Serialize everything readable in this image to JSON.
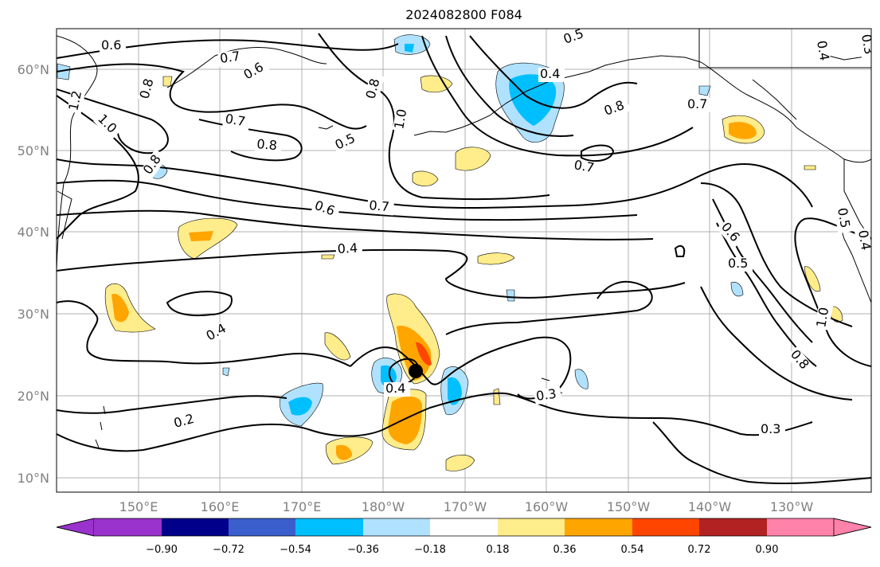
{
  "title": "2024082800 F084",
  "latitudes": [
    "10°N",
    "20°N",
    "30°N",
    "40°N",
    "50°N",
    "60°N"
  ],
  "longitudes": [
    "150°E",
    "160°E",
    "170°E",
    "180°W",
    "170°W",
    "160°W",
    "150°W",
    "140°W",
    "130°W"
  ],
  "contour_labels": [
    "0.6",
    "0.7",
    "0.6",
    "0.8",
    "1.2",
    "1.0",
    "0.8",
    "0.7",
    "0.5",
    "1.0",
    "0.8",
    "0.5",
    "0.4",
    "0.8",
    "0.7",
    "0.8",
    "0.7",
    "0.6",
    "0.7",
    "0.4",
    "0.6",
    "0.5",
    "0.5",
    "0.4",
    "0.4",
    "0.4",
    "0.2",
    "0.3",
    "0.3",
    "1.0",
    "0.8",
    "0.4",
    "0.3"
  ],
  "colorbar": {
    "ticks": [
      "−0.90",
      "−0.72",
      "−0.54",
      "−0.36",
      "−0.18",
      "0.18",
      "0.36",
      "0.54",
      "0.72",
      "0.90"
    ],
    "colors": {
      "lt_-0.90": "#9a32cd",
      "-0.90_-0.72": "#00008b",
      "-0.72_-0.54": "#3a5fcd",
      "-0.54_-0.36": "#00bfff",
      "-0.36_-0.18": "#b0e2ff",
      "-0.18_0.18": "#ffffff",
      "0.18_0.36": "#ffec8b",
      "0.36_0.54": "#ffa500",
      "0.54_0.72": "#ff4500",
      "0.72_0.90": "#b22222",
      "gt_0.90": "#ff82ab"
    }
  },
  "storm_marker_color": "#000000"
}
